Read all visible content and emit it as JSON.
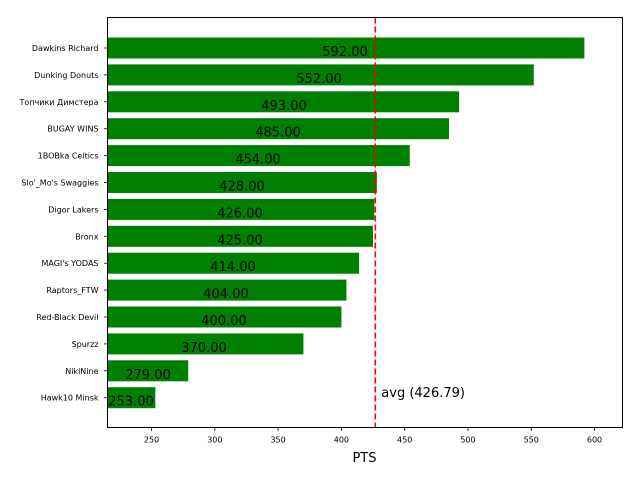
{
  "chart_data": {
    "type": "bar",
    "orientation": "horizontal",
    "title": "",
    "xlabel": "PTS",
    "ylabel": "",
    "xlim": [
      215.2,
      622.1
    ],
    "grid": false,
    "legend": null,
    "bar_color": "#008000",
    "categories": [
      "Dawkins Richard",
      "Dunking Donuts",
      "Топчики Димстера",
      "BUGAY WINS",
      "1BOBka Celtics",
      "Slo'_Mo's Swaggies",
      "Digor Lakers",
      "Bronx",
      "MAGI's YODAS",
      "Raptors_FTW",
      "Red-Black Devil",
      "Spurzz",
      "NikiNine",
      "Hawk10 Minsk"
    ],
    "values": [
      592,
      552,
      493,
      485,
      454,
      428,
      426,
      425,
      414,
      404,
      400,
      370,
      279,
      253
    ],
    "value_labels": [
      "592.00",
      "552.00",
      "493.00",
      "485.00",
      "454.00",
      "428.00",
      "426.00",
      "425.00",
      "414.00",
      "404.00",
      "400.00",
      "370.00",
      "279.00",
      "253.00"
    ],
    "x_ticks": [
      250,
      300,
      350,
      400,
      450,
      500,
      550,
      600
    ],
    "x_tick_labels": [
      "250",
      "300",
      "350",
      "400",
      "450",
      "500",
      "550",
      "600"
    ],
    "reference_line": {
      "value": 426.79,
      "label": "avg (426.79)",
      "color": "#ff0000",
      "style": "dashed"
    }
  }
}
